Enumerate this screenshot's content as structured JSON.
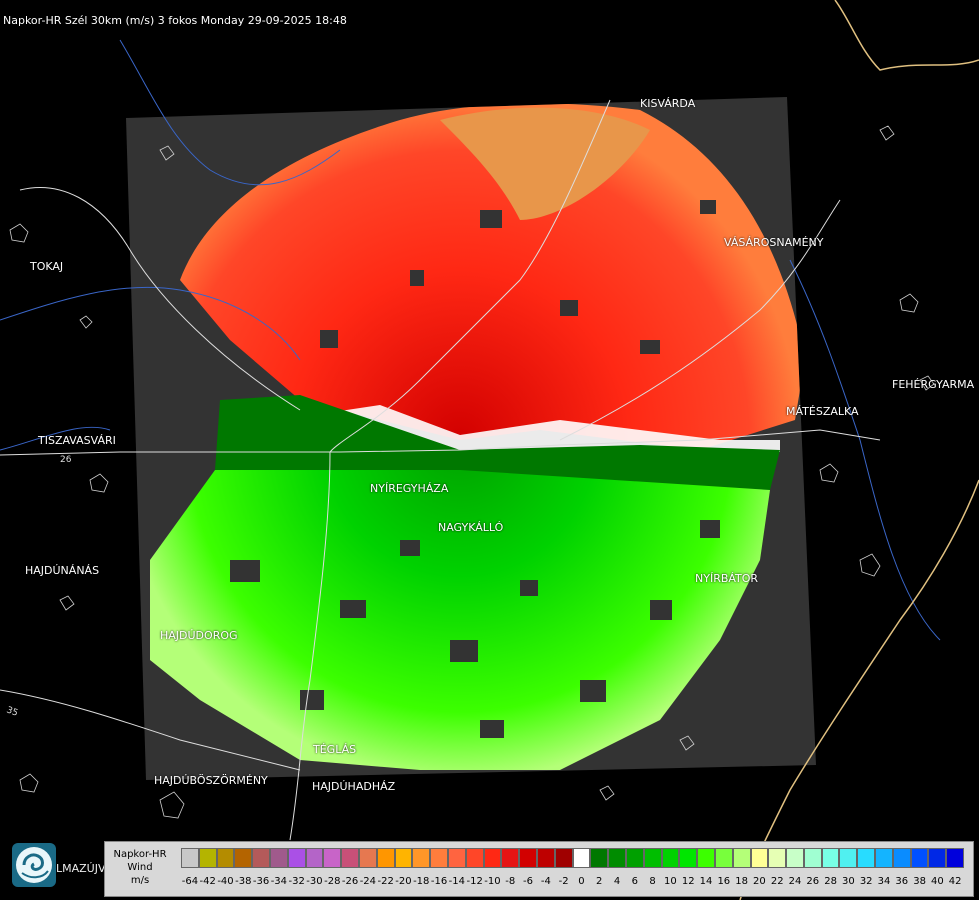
{
  "header": {
    "title": "Napkor-HR Szél 30km (m/s) 3 fokos Monday 29-09-2025 18:48"
  },
  "cities": [
    {
      "name": "KISVÁRDA",
      "key": "kisvarda"
    },
    {
      "name": "VÁSÁROSNAMÉNY",
      "key": "vasarosnameny"
    },
    {
      "name": "TOKAJ",
      "key": "tokaj"
    },
    {
      "name": "FEHÉRGYARMA",
      "key": "fehergyarmat"
    },
    {
      "name": "MÁTÉSZALKA",
      "key": "mateszalka"
    },
    {
      "name": "TISZAVASVÁRI",
      "key": "tiszavasvari"
    },
    {
      "name": "NYÍREGYHÁZA",
      "key": "nyiregyhaza"
    },
    {
      "name": "NAGYKÁLLÓ",
      "key": "nagykallo"
    },
    {
      "name": "HAJDÚNÁNÁS",
      "key": "hajdunanas"
    },
    {
      "name": "NYÍRBÁTOR",
      "key": "nyirbator"
    },
    {
      "name": "HAJDÚDOROG",
      "key": "hajdudorog"
    },
    {
      "name": "TÉGLÁS",
      "key": "teglas"
    },
    {
      "name": "HAJDÚBÖSZÖRMÉNY",
      "key": "hajduboszormeny"
    },
    {
      "name": "HAJDÚHADHÁZ",
      "key": "hajduhadhaz"
    }
  ],
  "road_labels": [
    "26",
    "35"
  ],
  "brand": "LMAZÚJVÁR",
  "legend": {
    "label_lines": [
      "Napkor-HR",
      "Wind",
      "m/s"
    ],
    "ticks": [
      "-64",
      "-42",
      "-40",
      "-38",
      "-36",
      "-34",
      "-32",
      "-30",
      "-28",
      "-26",
      "-24",
      "-22",
      "-20",
      "-18",
      "-16",
      "-14",
      "-12",
      "-10",
      "-8",
      "-6",
      "-4",
      "-2",
      "0",
      "2",
      "4",
      "6",
      "8",
      "10",
      "12",
      "14",
      "16",
      "18",
      "20",
      "22",
      "24",
      "26",
      "28",
      "30",
      "32",
      "34",
      "36",
      "38",
      "40",
      "42"
    ],
    "colors": [
      "#c8c8c8",
      "#b4b400",
      "#b48c00",
      "#b46400",
      "#b45a5a",
      "#a05a8c",
      "#aa50e6",
      "#b464c8",
      "#c864c8",
      "#c85078",
      "#e67850",
      "#ff9600",
      "#ffb400",
      "#ff9628",
      "#ff7d3c",
      "#ff6440",
      "#ff4628",
      "#ff2814",
      "#e61414",
      "#d20000",
      "#be0000",
      "#a00000",
      "#ffffff",
      "#007800",
      "#008c00",
      "#00a000",
      "#00be00",
      "#00d200",
      "#00e600",
      "#3cff00",
      "#78ff3c",
      "#b4ff78",
      "#ffff96",
      "#e6ffb4",
      "#c8ffc8",
      "#a0ffd2",
      "#78ffe6",
      "#50f0f0",
      "#28dcff",
      "#14b4ff",
      "#0a8cff",
      "#0050ff",
      "#0028e6",
      "#0000dc"
    ]
  }
}
